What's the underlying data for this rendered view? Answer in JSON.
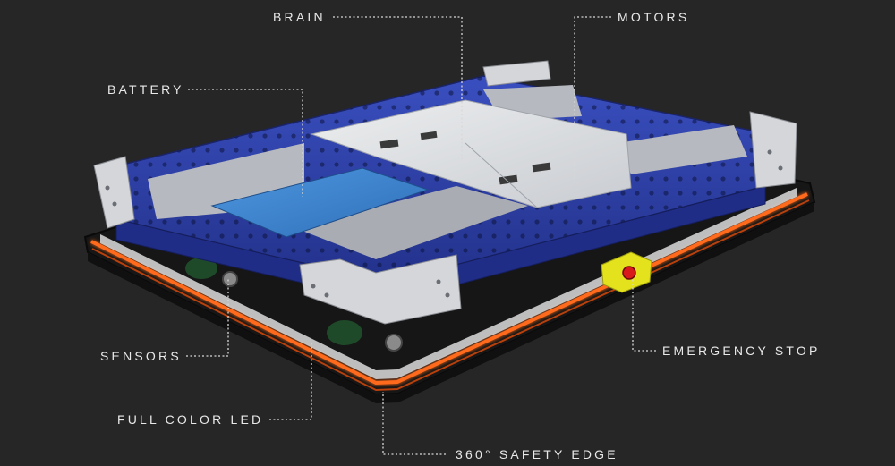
{
  "diagram": {
    "subject": "mobile robot platform",
    "colors": {
      "background": "#262626",
      "frame_blue": "#2d3fa3",
      "bracket_silver": "#d4d6da",
      "battery_blue": "#3f86d2",
      "led_orange": "#ff6a1a",
      "estop_yellow": "#e3e21c",
      "estop_red": "#d91a1a",
      "leader_line": "#d8d8d8",
      "label_text": "#e9e9e9"
    },
    "labels": {
      "brain": "BRAIN",
      "motors": "MOTORS",
      "battery": "BATTERY",
      "sensors": "SENSORS",
      "full_color_led": "FULL COLOR LED",
      "emergency_stop": "EMERGENCY STOP",
      "safety_edge": "360° SAFETY EDGE"
    }
  }
}
